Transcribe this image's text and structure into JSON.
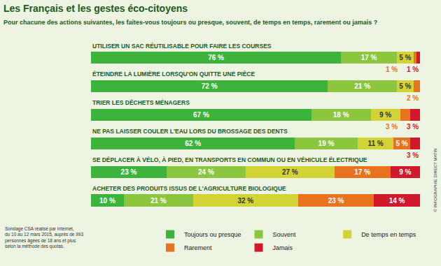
{
  "chart_data": {
    "type": "bar",
    "orientation": "horizontal",
    "stacked": true,
    "data_labels": true,
    "tick_labels": false,
    "grid": false,
    "legend": "bottom",
    "title": "Les Français et les gestes éco-citoyens",
    "subtitle": "Pour chacune des actions suivantes, les faites-vous toujours ou presque, souvent, de temps en temps, rarement ou jamais ?",
    "note": [
      "Sondage CSA réalisé par Internet,",
      "du 10 au 12 mars 2015, auprès de 993",
      "personnes âgées de 18 ans et plus",
      "selon la méthode des quotas."
    ],
    "credit": "© INFOGRAPHIE DIRECT MATIN",
    "xlim": [
      0,
      100
    ],
    "categories": [
      "UTILISER UN SAC RÉUTILISABLE POUR FAIRE LES COURSES",
      "ÉTEINDRE LA LUMIÈRE LORSQU'ON QUITTE UNE PIÈCE",
      "TRIER LES DÉCHETS MÉNAGERS",
      "NE PAS LAISSER COULER L'EAU LORS DU BROSSAGE DES DENTS",
      "SE DÉPLACER À VÉLO, À PIED, EN TRANSPORTS EN COMMUN OU EN VÉHICULE ÉLECTRIQUE",
      "ACHETER DES PRODUITS ISSUS DE L'AGRICULTURE BIOLOGIQUE"
    ],
    "series": [
      {
        "name": "Toujours ou presque",
        "color": "#3cb43c",
        "values": [
          76,
          72,
          67,
          62,
          23,
          10
        ],
        "value_labels": [
          "76 %",
          "72 %",
          "67 %",
          "62 %",
          "23 %",
          "10 %"
        ]
      },
      {
        "name": "Souvent",
        "color": "#8cc63f",
        "values": [
          17,
          21,
          18,
          19,
          24,
          21
        ],
        "value_labels": [
          "17 %",
          "21 %",
          "18 %",
          "19 %",
          "24 %",
          "21 %"
        ]
      },
      {
        "name": "De temps en temps",
        "color": "#d2d436",
        "values": [
          5,
          5,
          9,
          11,
          27,
          32
        ],
        "value_labels": [
          "5 %",
          "5 %",
          "9 %",
          "11 %",
          "27 %",
          "32 %"
        ]
      },
      {
        "name": "Rarement",
        "color": "#e8731e",
        "values": [
          1,
          2,
          3,
          5,
          17,
          23
        ],
        "value_labels": [
          "1 %",
          "2 %",
          "3 %",
          "5 %",
          "17 %",
          "23 %"
        ]
      },
      {
        "name": "Jamais",
        "color": "#d0192b",
        "values": [
          1,
          null,
          3,
          3,
          9,
          14
        ],
        "value_labels": [
          "1 %",
          null,
          "3 %",
          "3 %",
          "9 %",
          "14 %"
        ]
      }
    ]
  }
}
